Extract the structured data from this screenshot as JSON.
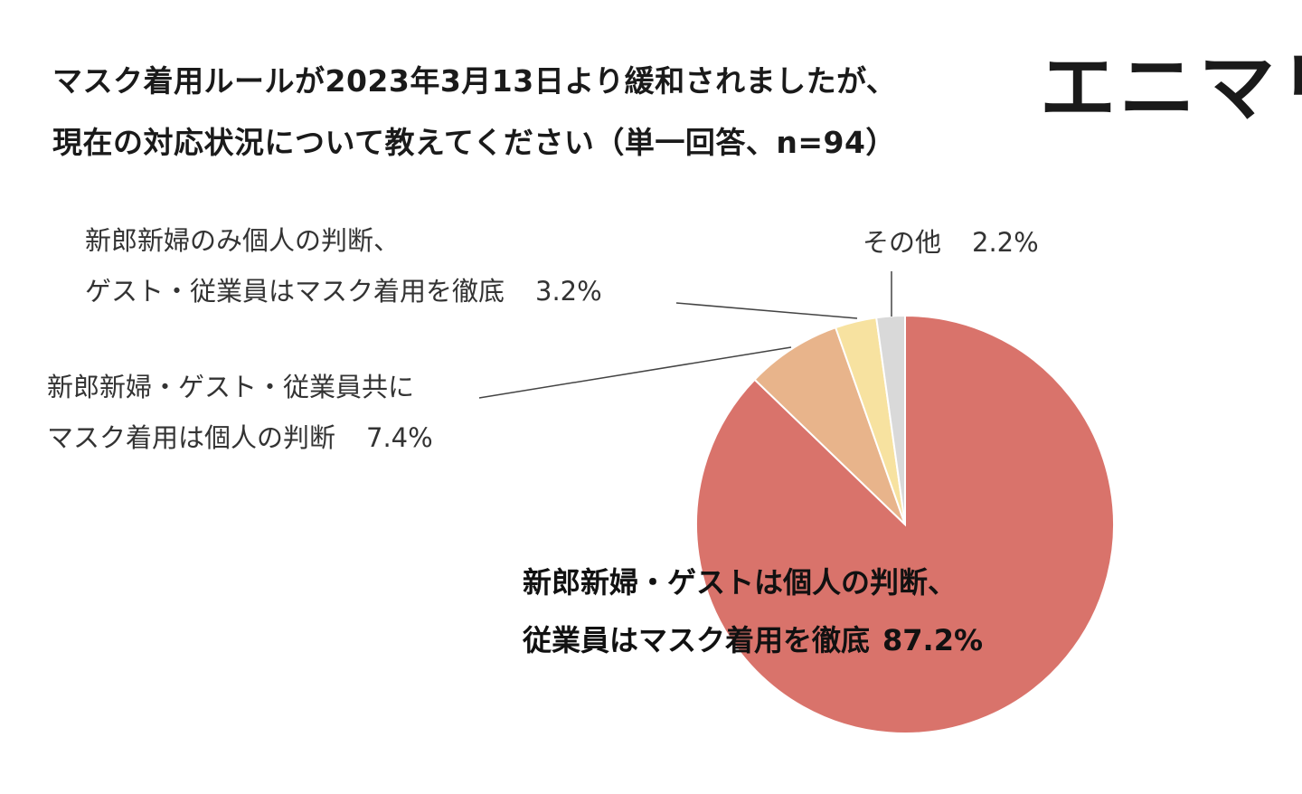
{
  "header": {
    "title_line1": "マスク着用ルールが2023年3月13日より緩和されましたが、",
    "title_line2": "現在の対応状況について教えてください（単一回答、n=94）",
    "brand": "エニマリ"
  },
  "chart_data": {
    "type": "pie",
    "title": "マスク着用ルールが2023年3月13日より緩和されましたが、現在の対応状況について教えてください（単一回答、n=94）",
    "start_angle_deg": 0,
    "direction": "clockwise",
    "slices": [
      {
        "label_line1": "新郎新婦・ゲストは個人の判断、",
        "label_line2": "従業員はマスク着用を徹底",
        "value": 87.2,
        "value_label": "87.2%",
        "color": "#d9736b"
      },
      {
        "label_line1": "新郎新婦・ゲスト・従業員共に",
        "label_line2": "マスク着用は個人の判断",
        "value": 7.4,
        "value_label": "7.4%",
        "color": "#e8b48b"
      },
      {
        "label_line1": "新郎新婦のみ個人の判断、",
        "label_line2": "ゲスト・従業員はマスク着用を徹底",
        "value": 3.2,
        "value_label": "3.2%",
        "color": "#f7e2a0"
      },
      {
        "label_line1": "その他",
        "label_line2": "",
        "value": 2.2,
        "value_label": "2.2%",
        "color": "#d9d9d9"
      }
    ]
  }
}
